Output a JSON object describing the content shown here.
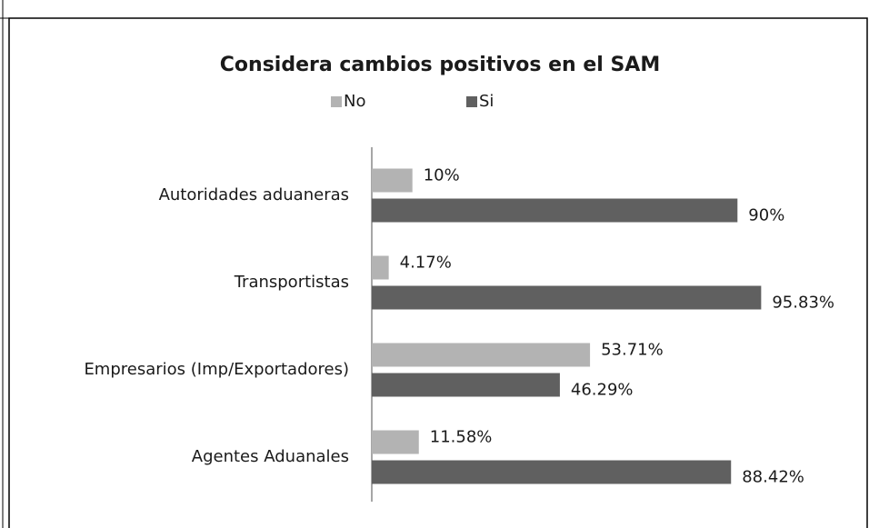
{
  "chart_data": {
    "type": "hbar",
    "title": "Considera cambios positivos en el SAM",
    "categories": [
      "Autoridades aduaneras",
      "Transportistas",
      "Empresarios (Imp/Exportadores)",
      "Agentes Aduanales"
    ],
    "series": [
      {
        "name": "No",
        "color": "#b3b3b3",
        "values": [
          10,
          4.17,
          53.71,
          11.58
        ],
        "value_labels": [
          "10%",
          "4.17%",
          "53.71%",
          "11.58%"
        ]
      },
      {
        "name": "Si",
        "color": "#606060",
        "values": [
          90,
          95.83,
          46.29,
          88.42
        ],
        "value_labels": [
          "90%",
          "95.83%",
          "46.29%",
          "88.42%"
        ]
      }
    ],
    "xlim": [
      0,
      100
    ],
    "legend": "top"
  }
}
